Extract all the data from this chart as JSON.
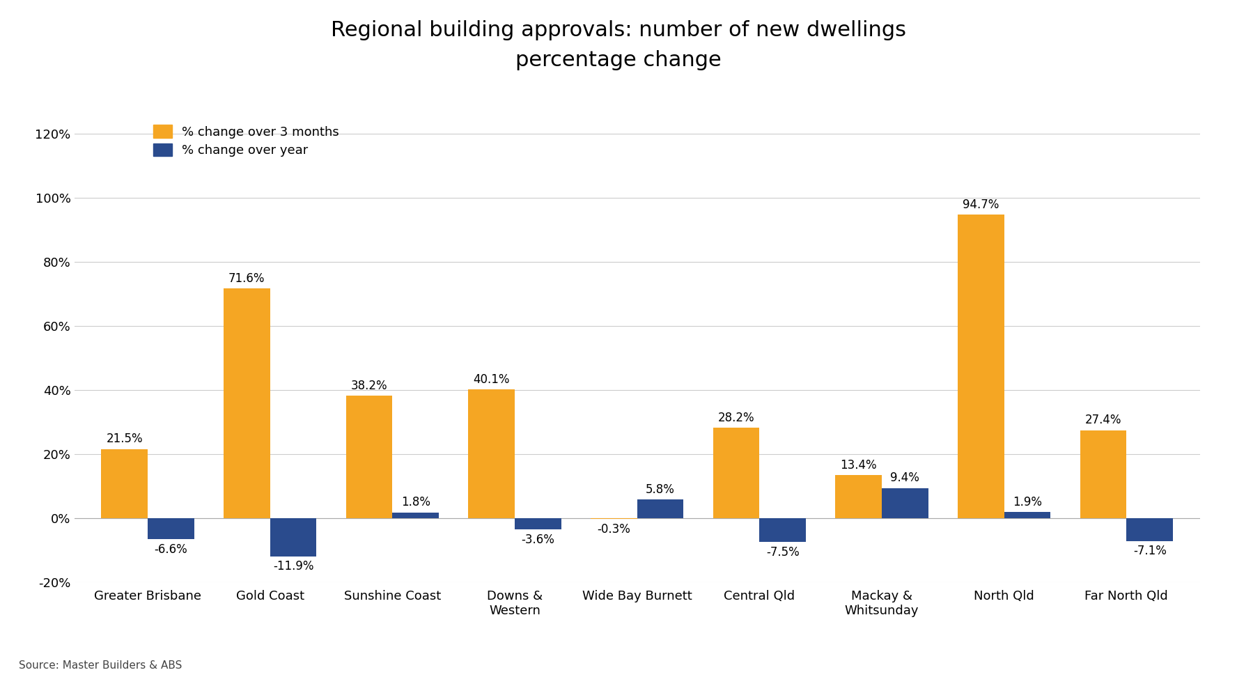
{
  "title": "Regional building approvals: number of new dwellings\npercentage change",
  "categories": [
    "Greater Brisbane",
    "Gold Coast",
    "Sunshine Coast",
    "Downs &\nWestern",
    "Wide Bay Burnett",
    "Central Qld",
    "Mackay &\nWhitsunday",
    "North Qld",
    "Far North Qld"
  ],
  "values_3months": [
    21.5,
    71.6,
    38.2,
    40.1,
    -0.3,
    28.2,
    13.4,
    94.7,
    27.4
  ],
  "values_year": [
    -6.6,
    -11.9,
    1.8,
    -3.6,
    5.8,
    -7.5,
    9.4,
    1.9,
    -7.1
  ],
  "color_3months": "#F5A623",
  "color_year": "#2A4B8D",
  "ylim": [
    -20,
    130
  ],
  "yticks": [
    -20,
    0,
    20,
    40,
    60,
    80,
    100,
    120
  ],
  "legend_3months": "% change over 3 months",
  "legend_year": "% change over year",
  "source": "Source: Master Builders & ABS",
  "background_color": "#FFFFFF",
  "bar_width": 0.38,
  "title_fontsize": 22,
  "tick_fontsize": 13,
  "label_fontsize": 12,
  "legend_fontsize": 13,
  "source_fontsize": 11
}
